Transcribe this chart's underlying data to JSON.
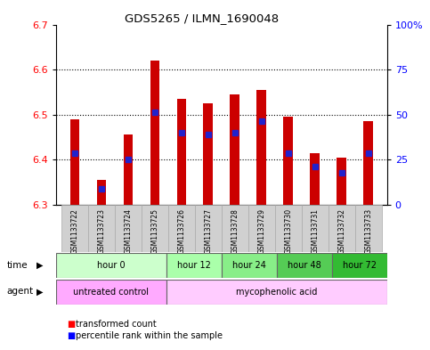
{
  "title": "GDS5265 / ILMN_1690048",
  "samples": [
    "GSM1133722",
    "GSM1133723",
    "GSM1133724",
    "GSM1133725",
    "GSM1133726",
    "GSM1133727",
    "GSM1133728",
    "GSM1133729",
    "GSM1133730",
    "GSM1133731",
    "GSM1133732",
    "GSM1133733"
  ],
  "bar_tops": [
    6.49,
    6.355,
    6.455,
    6.62,
    6.535,
    6.525,
    6.545,
    6.555,
    6.495,
    6.415,
    6.405,
    6.485
  ],
  "blue_positions": [
    6.415,
    6.335,
    6.4,
    6.505,
    6.46,
    6.455,
    6.46,
    6.485,
    6.415,
    6.385,
    6.37,
    6.415
  ],
  "bar_bottom": 6.3,
  "ylim_left": [
    6.3,
    6.7
  ],
  "ylim_right": [
    0,
    100
  ],
  "yticks_left": [
    6.3,
    6.4,
    6.5,
    6.6,
    6.7
  ],
  "yticks_right": [
    0,
    25,
    50,
    75,
    100
  ],
  "ytick_labels_right": [
    "0",
    "25",
    "50",
    "75",
    "100%"
  ],
  "bar_color": "#cc0000",
  "blue_color": "#2222cc",
  "time_groups": [
    {
      "label": "hour 0",
      "start": 0,
      "end": 4,
      "color": "#ccffcc"
    },
    {
      "label": "hour 12",
      "start": 4,
      "end": 6,
      "color": "#aaffaa"
    },
    {
      "label": "hour 24",
      "start": 6,
      "end": 8,
      "color": "#88ee88"
    },
    {
      "label": "hour 48",
      "start": 8,
      "end": 10,
      "color": "#55cc55"
    },
    {
      "label": "hour 72",
      "start": 10,
      "end": 12,
      "color": "#33bb33"
    }
  ],
  "agent_groups": [
    {
      "label": "untreated control",
      "start": 0,
      "end": 4,
      "color": "#ffaaff"
    },
    {
      "label": "mycophenolic acid",
      "start": 4,
      "end": 12,
      "color": "#ffccff"
    }
  ],
  "legend_items": [
    {
      "label": "transformed count",
      "color": "#cc0000"
    },
    {
      "label": "percentile rank within the sample",
      "color": "#2222cc"
    }
  ]
}
